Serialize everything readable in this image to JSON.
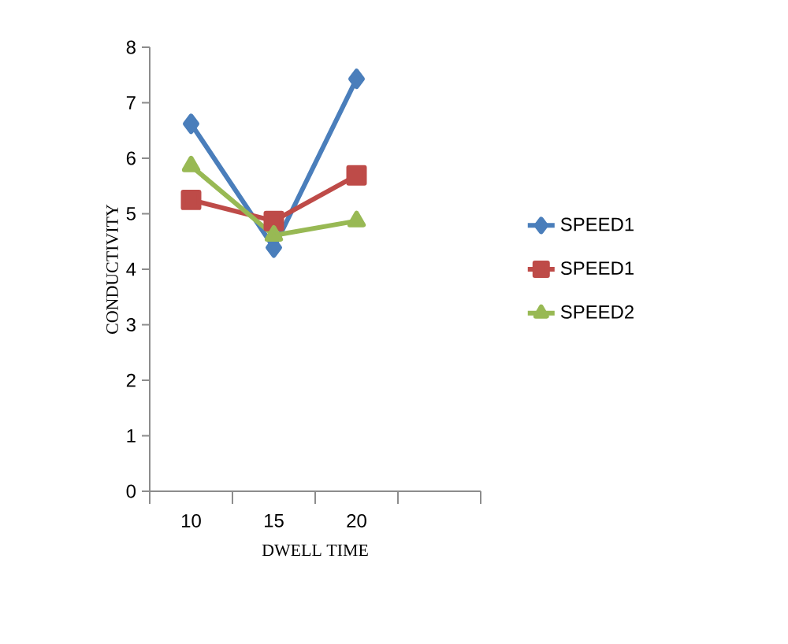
{
  "chart_data": {
    "type": "line",
    "xlabel": "DWELL TIME",
    "ylabel": "CONDUCTIVITY",
    "categories": [
      "10",
      "15",
      "20",
      null
    ],
    "ylim": [
      0,
      8
    ],
    "yticks": [
      0,
      1,
      2,
      3,
      4,
      5,
      6,
      7,
      8
    ],
    "grid": false,
    "legend": "right",
    "line_style": "solid",
    "series": [
      {
        "name": "SPEED1",
        "color": "#4a7ebb",
        "marker": "diamond",
        "values": [
          6.62,
          4.39,
          7.43,
          null
        ]
      },
      {
        "name": "SPEED1",
        "color": "#be4b48",
        "marker": "square",
        "values": [
          5.25,
          4.87,
          5.69,
          null
        ]
      },
      {
        "name": "SPEED2",
        "color": "#98b954",
        "marker": "triangle",
        "values": [
          5.86,
          4.61,
          4.87,
          null
        ]
      }
    ]
  }
}
